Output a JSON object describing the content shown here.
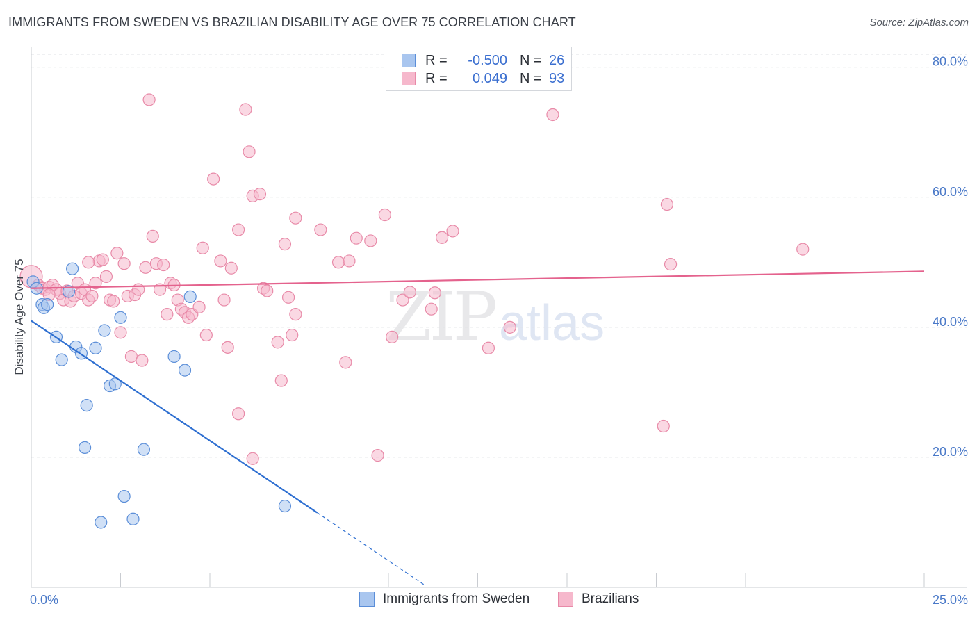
{
  "header": {
    "title": "IMMIGRANTS FROM SWEDEN VS BRAZILIAN DISABILITY AGE OVER 75 CORRELATION CHART",
    "source": "Source: ZipAtlas.com"
  },
  "watermark": {
    "zip": "ZIP",
    "atlas": "atlas"
  },
  "legend": {
    "rows": [
      {
        "r_label": "R =",
        "r_value": "-0.500",
        "n_label": "N =",
        "n_value": "26"
      },
      {
        "r_label": "R =",
        "r_value": "0.049",
        "n_label": "N =",
        "n_value": "93"
      }
    ]
  },
  "bottom_legend": {
    "sweden": "Immigrants from Sweden",
    "brazil": "Brazilians"
  },
  "colors": {
    "sweden_fill": "#a9c6ef",
    "sweden_stroke": "#5b8ed8",
    "sweden_line": "#2e6fd1",
    "brazil_fill": "#f6b8cc",
    "brazil_stroke": "#e88aa8",
    "brazil_line": "#e4628d",
    "grid": "#dfe1e5",
    "tick_text": "#4a79c8"
  },
  "chart_data": {
    "type": "scatter",
    "title": "IMMIGRANTS FROM SWEDEN VS BRAZILIAN DISABILITY AGE OVER 75 CORRELATION CHART",
    "xlabel": "",
    "ylabel": "Disability Age Over 75",
    "xlim": [
      0,
      25
    ],
    "ylim": [
      0,
      82
    ],
    "x_tick_labels": [
      "0.0%",
      "25.0%"
    ],
    "y_ticks": [
      20,
      40,
      60,
      80
    ],
    "y_tick_labels": [
      "20.0%",
      "40.0%",
      "60.0%",
      "80.0%"
    ],
    "grid": true,
    "series": [
      {
        "name": "Immigrants from Sweden",
        "R": -0.5,
        "N": 26,
        "points": [
          [
            0.05,
            47.0
          ],
          [
            0.15,
            46.0
          ],
          [
            0.3,
            43.5
          ],
          [
            0.35,
            43.0
          ],
          [
            0.45,
            43.5
          ],
          [
            0.7,
            38.5
          ],
          [
            0.85,
            35.0
          ],
          [
            1.05,
            45.5
          ],
          [
            1.15,
            49.0
          ],
          [
            1.25,
            37.0
          ],
          [
            1.4,
            36.0
          ],
          [
            1.55,
            28.0
          ],
          [
            1.5,
            21.5
          ],
          [
            1.8,
            36.8
          ],
          [
            1.95,
            10.0
          ],
          [
            2.05,
            39.5
          ],
          [
            2.2,
            31.0
          ],
          [
            2.35,
            31.3
          ],
          [
            2.5,
            41.5
          ],
          [
            2.6,
            14.0
          ],
          [
            2.85,
            10.5
          ],
          [
            3.15,
            21.2
          ],
          [
            4.0,
            35.5
          ],
          [
            4.3,
            33.4
          ],
          [
            4.45,
            44.7
          ],
          [
            7.1,
            12.5
          ]
        ],
        "trend": {
          "x0": 0.0,
          "y0": 41.0,
          "x1": 8.0,
          "y1": 11.5,
          "dash_to_x": 11.0,
          "dash_to_y": 0.4
        }
      },
      {
        "name": "Brazilians",
        "R": 0.049,
        "N": 93,
        "points": [
          [
            0.0,
            47.8
          ],
          [
            0.2,
            46.5
          ],
          [
            0.3,
            46.0
          ],
          [
            0.4,
            45.8
          ],
          [
            0.5,
            46.2
          ],
          [
            0.6,
            46.5
          ],
          [
            0.7,
            45.8
          ],
          [
            0.8,
            45.2
          ],
          [
            0.9,
            44.2
          ],
          [
            1.0,
            45.6
          ],
          [
            1.1,
            44.0
          ],
          [
            1.2,
            44.8
          ],
          [
            1.3,
            46.8
          ],
          [
            1.4,
            45.2
          ],
          [
            1.5,
            45.8
          ],
          [
            1.6,
            44.2
          ],
          [
            1.7,
            44.8
          ],
          [
            1.8,
            46.8
          ],
          [
            1.9,
            50.2
          ],
          [
            2.0,
            50.4
          ],
          [
            2.1,
            47.8
          ],
          [
            2.2,
            44.2
          ],
          [
            2.3,
            44.0
          ],
          [
            2.4,
            51.4
          ],
          [
            2.5,
            39.2
          ],
          [
            2.6,
            49.8
          ],
          [
            2.7,
            44.8
          ],
          [
            2.8,
            35.5
          ],
          [
            2.9,
            45.0
          ],
          [
            3.0,
            45.8
          ],
          [
            3.1,
            34.9
          ],
          [
            3.2,
            49.2
          ],
          [
            3.4,
            54.0
          ],
          [
            3.5,
            49.8
          ],
          [
            3.6,
            45.8
          ],
          [
            3.7,
            49.6
          ],
          [
            3.8,
            42.0
          ],
          [
            3.9,
            46.8
          ],
          [
            4.0,
            46.5
          ],
          [
            4.1,
            44.2
          ],
          [
            4.2,
            42.8
          ],
          [
            4.3,
            42.3
          ],
          [
            4.4,
            41.5
          ],
          [
            4.5,
            42.0
          ],
          [
            4.7,
            43.1
          ],
          [
            4.8,
            52.2
          ],
          [
            4.9,
            38.8
          ],
          [
            5.1,
            62.8
          ],
          [
            5.3,
            50.2
          ],
          [
            5.4,
            44.2
          ],
          [
            5.5,
            36.9
          ],
          [
            5.6,
            49.1
          ],
          [
            5.8,
            26.7
          ],
          [
            5.8,
            55.0
          ],
          [
            6.0,
            73.5
          ],
          [
            6.1,
            67.0
          ],
          [
            6.2,
            19.8
          ],
          [
            6.2,
            60.2
          ],
          [
            6.4,
            60.5
          ],
          [
            6.5,
            46.0
          ],
          [
            6.6,
            45.6
          ],
          [
            6.9,
            37.7
          ],
          [
            7.0,
            31.8
          ],
          [
            7.1,
            52.8
          ],
          [
            7.2,
            44.6
          ],
          [
            7.3,
            38.8
          ],
          [
            7.4,
            42.0
          ],
          [
            7.4,
            56.8
          ],
          [
            8.1,
            55.0
          ],
          [
            8.6,
            50.0
          ],
          [
            8.8,
            34.6
          ],
          [
            8.9,
            50.2
          ],
          [
            9.1,
            53.7
          ],
          [
            9.5,
            53.3
          ],
          [
            9.7,
            20.3
          ],
          [
            9.9,
            57.3
          ],
          [
            10.1,
            38.5
          ],
          [
            10.4,
            44.2
          ],
          [
            10.6,
            45.4
          ],
          [
            11.2,
            42.8
          ],
          [
            11.3,
            45.3
          ],
          [
            11.5,
            53.8
          ],
          [
            11.8,
            54.8
          ],
          [
            12.8,
            36.8
          ],
          [
            13.4,
            40.0
          ],
          [
            14.6,
            72.7
          ],
          [
            3.3,
            75.0
          ],
          [
            17.7,
            24.8
          ],
          [
            17.8,
            58.9
          ],
          [
            17.9,
            49.7
          ],
          [
            21.6,
            52.0
          ],
          [
            1.6,
            50.0
          ],
          [
            0.5,
            45.0
          ]
        ],
        "trend": {
          "x0": 0.0,
          "y0": 46.0,
          "x1": 25.0,
          "y1": 48.6
        }
      }
    ]
  }
}
